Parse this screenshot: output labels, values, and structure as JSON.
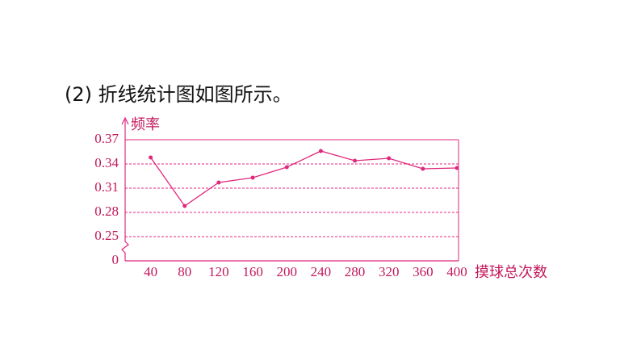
{
  "heading": "(2) 折线统计图如图所示。",
  "chart_data": {
    "type": "line",
    "y_label": "频率",
    "x_label": "摸球总次数",
    "x": [
      40,
      80,
      120,
      160,
      200,
      240,
      280,
      320,
      360,
      400
    ],
    "values": [
      0.348,
      0.288,
      0.317,
      0.323,
      0.336,
      0.356,
      0.344,
      0.347,
      0.334,
      0.335
    ],
    "color": "#e0287d",
    "xlim": [
      10,
      400
    ],
    "xticks": [
      40,
      80,
      120,
      160,
      200,
      240,
      280,
      320,
      360,
      400
    ],
    "ylim": [
      0.25,
      0.37
    ],
    "yticks": [
      0.25,
      0.28,
      0.31,
      0.34,
      0.37
    ],
    "origin_label": 0,
    "axis_break": true,
    "grid": true
  }
}
